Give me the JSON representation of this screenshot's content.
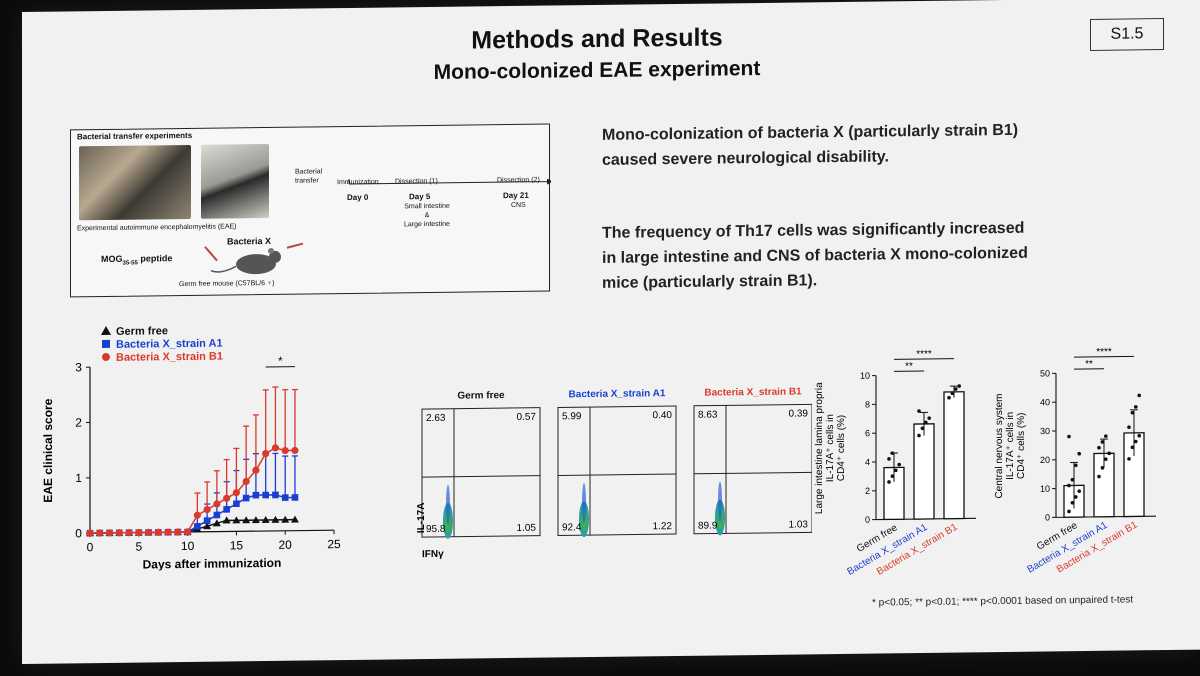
{
  "slide": {
    "id_badge": "S1.5",
    "title": "Methods and Results",
    "subtitle": "Mono-colonized EAE experiment"
  },
  "methods": {
    "box_title": "Bacterial transfer experiments",
    "photo_caption": "Experimental autoimmune encephalomyelitis (EAE)",
    "bacterial_transfer_label": "Bacterial transfer",
    "timeline": [
      {
        "header": "Immunization",
        "day": "Day 0",
        "detail": ""
      },
      {
        "header": "Dissection (1)",
        "day": "Day 5",
        "detail": "Small intestine & Large intestine"
      },
      {
        "header": "Dissection (2)",
        "day": "Day 21",
        "detail": "CNS"
      }
    ],
    "timeline_detail_line1": "Small intestine",
    "timeline_detail_line2": "&",
    "timeline_detail_line3": "Large intestine",
    "peptide_label": "MOG",
    "peptide_sub": "35-55",
    "peptide_suffix": " peptide",
    "bacteria_label": "Bacteria X",
    "mouse_caption": "Germ free mouse (C57BL/6 ♀)"
  },
  "findings": {
    "p1_line1": "Mono-colonization of bacteria X (particularly strain B1)",
    "p1_line2": "caused severe neurological disability.",
    "p2_line1": "The frequency of Th17 cells was significantly increased",
    "p2_line2": "in large intestine and CNS of bacteria X mono-colonized",
    "p2_line3": "mice (particularly strain B1)."
  },
  "chart_data": [
    {
      "type": "line",
      "xlabel": "Days after immunization",
      "ylabel": "EAE clinical score",
      "xlim": [
        0,
        25
      ],
      "ylim": [
        0,
        3
      ],
      "xticks": [
        0,
        5,
        10,
        15,
        20,
        25
      ],
      "yticks": [
        0,
        1,
        2,
        3
      ],
      "significance_label": "*",
      "legend_position": "top-left",
      "series": [
        {
          "name": "Germ free",
          "color": "#111111",
          "marker": "triangle",
          "x": [
            0,
            1,
            2,
            3,
            4,
            5,
            6,
            7,
            8,
            9,
            10,
            11,
            12,
            13,
            14,
            15,
            16,
            17,
            18,
            19,
            20,
            21
          ],
          "y": [
            0,
            0,
            0,
            0,
            0,
            0,
            0,
            0,
            0,
            0,
            0,
            0.05,
            0.1,
            0.15,
            0.2,
            0.2,
            0.2,
            0.2,
            0.2,
            0.2,
            0.2,
            0.2
          ],
          "err": [
            0,
            0,
            0,
            0,
            0,
            0,
            0,
            0,
            0,
            0,
            0,
            0,
            0,
            0,
            0,
            0,
            0,
            0,
            0,
            0,
            0,
            0
          ]
        },
        {
          "name": "Bacteria X_strain A1",
          "color": "#1a3fd0",
          "marker": "square",
          "x": [
            0,
            1,
            2,
            3,
            4,
            5,
            6,
            7,
            8,
            9,
            10,
            11,
            12,
            13,
            14,
            15,
            16,
            17,
            18,
            19,
            20,
            21
          ],
          "y": [
            0,
            0,
            0,
            0,
            0,
            0,
            0,
            0,
            0,
            0,
            0,
            0.1,
            0.2,
            0.3,
            0.4,
            0.5,
            0.6,
            0.65,
            0.65,
            0.65,
            0.6,
            0.6
          ],
          "err": [
            0,
            0,
            0,
            0,
            0,
            0,
            0,
            0,
            0,
            0,
            0,
            0.2,
            0.3,
            0.4,
            0.5,
            0.6,
            0.7,
            0.75,
            0.75,
            0.75,
            0.75,
            0.75
          ]
        },
        {
          "name": "Bacteria X_strain B1",
          "color": "#d93a2a",
          "marker": "circle",
          "x": [
            0,
            1,
            2,
            3,
            4,
            5,
            6,
            7,
            8,
            9,
            10,
            11,
            12,
            13,
            14,
            15,
            16,
            17,
            18,
            19,
            20,
            21
          ],
          "y": [
            0,
            0,
            0,
            0,
            0,
            0,
            0,
            0,
            0,
            0,
            0,
            0.3,
            0.4,
            0.5,
            0.6,
            0.7,
            0.9,
            1.1,
            1.4,
            1.5,
            1.45,
            1.45
          ],
          "err": [
            0,
            0,
            0,
            0,
            0,
            0,
            0,
            0,
            0,
            0,
            0,
            0.4,
            0.5,
            0.6,
            0.7,
            0.8,
            1.0,
            1.0,
            1.15,
            1.1,
            1.1,
            1.1
          ]
        }
      ]
    },
    {
      "type": "scatter",
      "title": "Germ free",
      "xlabel": "IFNγ",
      "ylabel": "IL-17A",
      "quadrants": {
        "top_left": "2.63",
        "top_right": "0.57",
        "bottom_left": "95.8",
        "bottom_right": "1.05"
      }
    },
    {
      "type": "scatter",
      "title": "Bacteria X_strain A1",
      "quadrants": {
        "top_left": "5.99",
        "top_right": "0.40",
        "bottom_left": "92.4",
        "bottom_right": "1.22"
      }
    },
    {
      "type": "scatter",
      "title": "Bacteria X_strain B1",
      "quadrants": {
        "top_left": "8.63",
        "top_right": "0.39",
        "bottom_left": "89.9",
        "bottom_right": "1.03"
      }
    },
    {
      "type": "bar",
      "ylabel_line1": "Large intestine lamina propria",
      "ylabel_line2": "IL-17A⁺ cells in",
      "ylabel_line3": "CD4⁺ cells (%)",
      "ylim": [
        0,
        10
      ],
      "yticks": [
        0,
        2,
        4,
        6,
        8,
        10
      ],
      "categories": [
        "Germ free",
        "Bacteria X_strain A1",
        "Bacteria X_strain B1"
      ],
      "values": [
        3.6,
        6.6,
        8.8
      ],
      "errors": [
        1.0,
        0.8,
        0.4
      ],
      "points": [
        [
          2.6,
          3.0,
          3.4,
          3.8,
          4.2,
          4.6
        ],
        [
          5.8,
          6.3,
          6.7,
          7.0,
          7.5
        ],
        [
          8.4,
          8.7,
          9.0,
          9.2
        ]
      ],
      "significance": [
        "**",
        "****"
      ]
    },
    {
      "type": "bar",
      "ylabel_line1": "Central nervous system",
      "ylabel_line2": "IL-17A⁺ cells in",
      "ylabel_line3": "CD4⁺ cells (%)",
      "ylim": [
        0,
        50
      ],
      "yticks": [
        0,
        10,
        20,
        30,
        40,
        50
      ],
      "categories": [
        "Germ free",
        "Bacteria X_strain A1",
        "Bacteria X_strain B1"
      ],
      "values": [
        11,
        22,
        29
      ],
      "errors": [
        8,
        5,
        8
      ],
      "points": [
        [
          2,
          5,
          7,
          9,
          11,
          13,
          18,
          22,
          28
        ],
        [
          14,
          17,
          20,
          22,
          24,
          26,
          28
        ],
        [
          20,
          24,
          26,
          28,
          31,
          36,
          38,
          42
        ]
      ],
      "significance": [
        "**",
        "****"
      ]
    }
  ],
  "colors": {
    "germ_free": "#111111",
    "strain_a1": "#1a3fd0",
    "strain_b1": "#d93a2a"
  },
  "footnote": "* p<0.05; ** p<0.01; **** p<0.0001 based on unpaired t-test"
}
